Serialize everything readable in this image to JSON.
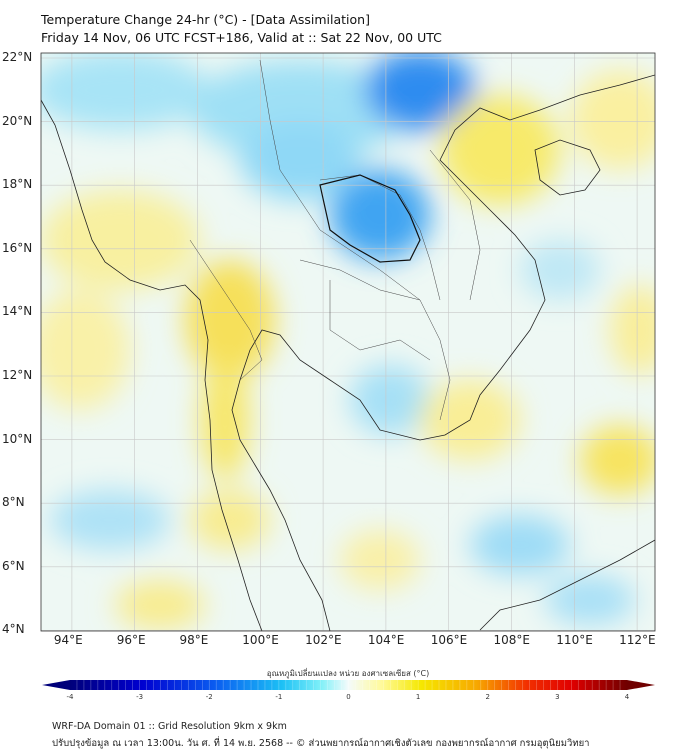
{
  "header": {
    "title": "Temperature Change 24-hr (°C) - [Data Assimilation]",
    "subtitle": "Friday 14 Nov, 06 UTC FCST+186, Valid at :: Sat 22 Nov, 00 UTC"
  },
  "map": {
    "lat_labels": [
      "22°N",
      "20°N",
      "18°N",
      "16°N",
      "14°N",
      "12°N",
      "10°N",
      "8°N",
      "6°N",
      "4°N"
    ],
    "lon_labels": [
      "94°E",
      "96°E",
      "98°E",
      "100°E",
      "102°E",
      "104°E",
      "106°E",
      "108°E",
      "110°E",
      "112°E"
    ],
    "field_colors": {
      "cold": "#2a8cf0",
      "cool": "#8fdcf5",
      "warm": "#f7e55a",
      "neutral": "#f4f8f4"
    }
  },
  "colorbar": {
    "label": "อุณหภูมิเปลี่ยนแปลง หน่วย องศาเซลเซียส (°C)",
    "ticks": [
      "-4",
      "-3",
      "-2",
      "-1",
      "0",
      "1",
      "2",
      "3",
      "4"
    ],
    "colors": [
      "#00007a",
      "#0000d0",
      "#0a5cf0",
      "#1cc0f5",
      "#7ff0f8",
      "#f4fbfb",
      "#fffa9a",
      "#f5e800",
      "#f7a800",
      "#f23000",
      "#e00000",
      "#700000"
    ]
  },
  "footer": {
    "line1": "WRF-DA Domain 01 :: Grid Resolution 9km x 9km",
    "line2": "ปรับปรุงข้อมูล ณ เวลา 13:00น. วัน ศ. ที่ 14 พ.ย. 2568 -- © ส่วนพยากรณ์อากาศเชิงตัวเลข กองพยากรณ์อากาศ กรมอุตุนิยมวิทยา"
  }
}
